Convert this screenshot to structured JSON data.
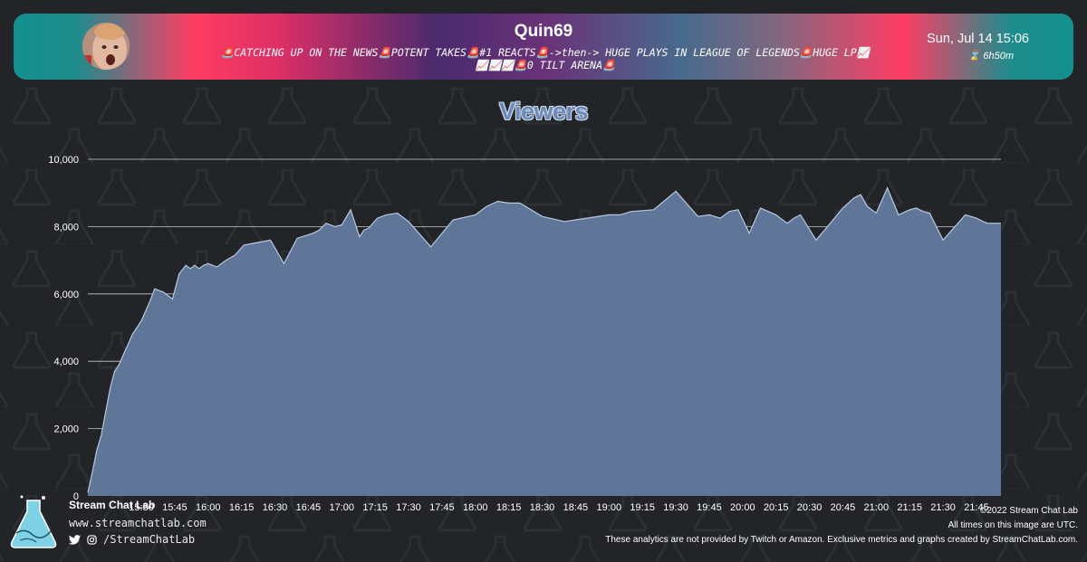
{
  "header": {
    "channel_name": "Quin69",
    "stream_title_line1": "🚨CATCHING UP ON THE NEWS🚨POTENT TAKES🚨#1 REACTS🚨->then-> HUGE PLAYS IN LEAGUE OF LEGENDS🚨HUGE LP📈",
    "stream_title_line2": "📈📈📈🚨0 TILT ARENA🚨",
    "date_time": "Sun, Jul 14 15:06",
    "duration": "6h50m",
    "duration_icon": "hourglass-icon",
    "avatar_icon": "streamer-avatar"
  },
  "colors": {
    "background": "#222427",
    "area_fill": "#5f7699",
    "area_stroke": "#b9c8de",
    "title": "#6d89b5",
    "gridline": "#e6e6e6"
  },
  "chart_data": {
    "type": "area",
    "title": "Viewers",
    "xlabel": "",
    "ylabel": "",
    "ylim": [
      0,
      10000
    ],
    "yticks": [
      0,
      2000,
      4000,
      6000,
      8000,
      10000
    ],
    "ytick_labels": [
      "0",
      "2,000",
      "4,000",
      "6,000",
      "8,000",
      "10,000"
    ],
    "xticks": [
      "15:30",
      "15:45",
      "16:00",
      "16:15",
      "16:30",
      "16:45",
      "17:00",
      "17:15",
      "17:30",
      "17:45",
      "18:00",
      "18:15",
      "18:30",
      "18:45",
      "19:00",
      "19:15",
      "19:30",
      "19:45",
      "20:00",
      "20:15",
      "20:30",
      "20:45",
      "21:00",
      "21:15",
      "21:30",
      "21:45"
    ],
    "grid": "horizontal",
    "legend": "none",
    "series": [
      {
        "x": [
          "15:06",
          "15:08",
          "15:10",
          "15:12",
          "15:14",
          "15:16",
          "15:18",
          "15:20",
          "15:22",
          "15:24",
          "15:26",
          "15:28",
          "15:30",
          "15:32",
          "15:34",
          "15:36",
          "15:40",
          "15:44",
          "15:47",
          "15:50",
          "15:52",
          "15:54",
          "15:56",
          "15:58",
          "16:00",
          "16:04",
          "16:08",
          "16:12",
          "16:16",
          "16:20",
          "16:24",
          "16:28",
          "16:34",
          "16:40",
          "16:47",
          "16:50",
          "16:53",
          "16:57",
          "17:00",
          "17:04",
          "17:08",
          "17:10",
          "17:12",
          "17:16",
          "17:20",
          "17:25",
          "17:30",
          "17:40",
          "17:50",
          "18:00",
          "18:05",
          "18:10",
          "18:15",
          "18:20",
          "18:30",
          "18:40",
          "18:50",
          "19:00",
          "19:05",
          "19:10",
          "19:20",
          "19:30",
          "19:40",
          "19:45",
          "19:50",
          "19:54",
          "19:58",
          "20:03",
          "20:08",
          "20:15",
          "20:20",
          "20:23",
          "20:26",
          "20:33",
          "20:40",
          "20:45",
          "20:50",
          "20:53",
          "20:56",
          "21:00",
          "21:05",
          "21:10",
          "21:15",
          "21:18",
          "21:21",
          "21:24",
          "21:30",
          "21:40",
          "21:45",
          "21:48",
          "21:50",
          "21:52",
          "21:54",
          "21:56"
        ],
        "values": [
          100,
          700,
          1350,
          1800,
          2500,
          3200,
          3700,
          3900,
          4200,
          4500,
          4800,
          5000,
          5200,
          5500,
          5800,
          6150,
          6050,
          5850,
          6600,
          6850,
          6750,
          6850,
          6750,
          6850,
          6900,
          6800,
          7000,
          7150,
          7450,
          7500,
          7550,
          7600,
          6900,
          7650,
          7800,
          7900,
          8100,
          8000,
          8050,
          8500,
          7700,
          7900,
          7950,
          8250,
          8350,
          8400,
          8150,
          7400,
          8200,
          8350,
          8600,
          8750,
          8700,
          8700,
          8300,
          8150,
          8250,
          8350,
          8350,
          8450,
          8500,
          9050,
          8300,
          8350,
          8250,
          8450,
          8500,
          7800,
          8550,
          8350,
          8100,
          8250,
          8350,
          7600,
          8150,
          8550,
          8850,
          8950,
          8600,
          8400,
          9150,
          8350,
          8500,
          8550,
          8450,
          8400,
          7600,
          8350,
          8250,
          8150,
          8100,
          8100,
          8100,
          8100
        ]
      }
    ]
  },
  "footer": {
    "brand": "Stream Chat Lab",
    "website": "www.streamchatlab.com",
    "social_handle": "/StreamChatLab",
    "copyright": "©2022 Stream Chat Lab",
    "timezone_note": "All times on this image are UTC.",
    "disclaimer": "These analytics are not provided by Twitch or Amazon. Exclusive metrics and graphs created by StreamChatLab.com."
  }
}
